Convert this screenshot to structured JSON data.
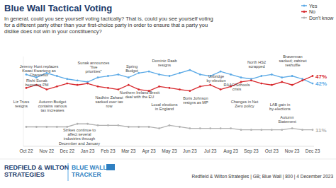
{
  "chart_data": {
    "type": "line",
    "title": "Blue Wall Tactical Voting",
    "subtitle": "In general, could you see yourself voting tactically? That is, could you see yourself voting for a different party other than your first-choice party in order to ensure that a party you dislike does not win in your constituency?",
    "categories": [
      "Oct 22",
      null,
      "Nov 22",
      null,
      "Dec 22",
      null,
      "Jan 23",
      null,
      "Feb 23",
      null,
      "Mar 23",
      null,
      "Apr 23",
      null,
      "May 23",
      null,
      "Jun 23",
      null,
      "Jul 23",
      null,
      "Aug 23",
      null,
      "Sep 23",
      null,
      "Oct 23",
      null,
      "Nov 23",
      null,
      "Dec 23"
    ],
    "series": [
      {
        "name": "Yes",
        "color": "#5aa9e6",
        "marker": "circle",
        "values": [
          48,
          46,
          49,
          47,
          45,
          44,
          43,
          46,
          47,
          48,
          46,
          49,
          50,
          48,
          47,
          49,
          51,
          48,
          47,
          50,
          48,
          46,
          45,
          47,
          48,
          46,
          47,
          45,
          42
        ],
        "value_labels": [
          null,
          null,
          null,
          null,
          null,
          null,
          null,
          null,
          null,
          null,
          null,
          null,
          null,
          null,
          null,
          null,
          null,
          null,
          null,
          null,
          null,
          null,
          null,
          null,
          null,
          null,
          null,
          null,
          "42%"
        ]
      },
      {
        "name": "No",
        "color": "#d7262b",
        "marker": "circle",
        "values": [
          39,
          41,
          38,
          40,
          42,
          41,
          42,
          40,
          39,
          38,
          41,
          38,
          37,
          40,
          39,
          38,
          37,
          40,
          41,
          38,
          40,
          43,
          44,
          42,
          41,
          43,
          41,
          44,
          47
        ],
        "value_labels": [
          null,
          null,
          null,
          null,
          null,
          null,
          null,
          null,
          null,
          null,
          null,
          null,
          null,
          null,
          null,
          null,
          null,
          null,
          null,
          null,
          null,
          null,
          null,
          null,
          null,
          null,
          null,
          null,
          "47%"
        ]
      },
      {
        "name": "Don't know",
        "color": "#b0b0b0",
        "marker": "circle",
        "values": [
          13,
          13,
          13,
          13,
          13,
          15,
          15,
          14,
          14,
          14,
          13,
          13,
          13,
          12,
          14,
          13,
          12,
          12,
          12,
          12,
          12,
          11,
          11,
          11,
          11,
          11,
          12,
          11,
          11
        ],
        "value_labels": [
          null,
          null,
          null,
          null,
          null,
          null,
          null,
          null,
          null,
          null,
          null,
          null,
          null,
          null,
          null,
          null,
          null,
          null,
          null,
          null,
          null,
          null,
          null,
          null,
          null,
          null,
          null,
          null,
          "11%"
        ]
      }
    ],
    "ylim": [
      0,
      60
    ],
    "grid": false,
    "tick_labels": "x",
    "legend": "top-right",
    "annotations": [
      "Jeremy Hunt replaces Kwasi Kwarteng as Chancellor",
      "Rishi Sunak becomes PM",
      "Liz Truss resigns",
      "Autumn Budget contains various tax increases",
      "Strikes continue to affect several industries through December and January",
      "Sunak announces \"five priorities\"",
      "Nadhim Zahawi sacked over tax row",
      "Northern Ireland Brexit deal with the EU",
      "Spring Budget",
      "Dominic Raab resigns",
      "Local elections in England",
      "Boris Johnson resigns as MP",
      "Uxbridge by-election",
      "RAAC/Schools crisis",
      "North HS2 scrapped",
      "Changes in Net Zero policy",
      "LAB gain in by-elections",
      "Braverman sacked; cabinet reshuffle",
      "Autumn Statement"
    ],
    "logo": "REDFIELD & WILTON STRATEGIES",
    "tracker_logo": "BLUE WALL TRACKER",
    "source": "Redfield & Wilton Strategies | GB; Blue Wall | 800 | 4 December 2023"
  }
}
